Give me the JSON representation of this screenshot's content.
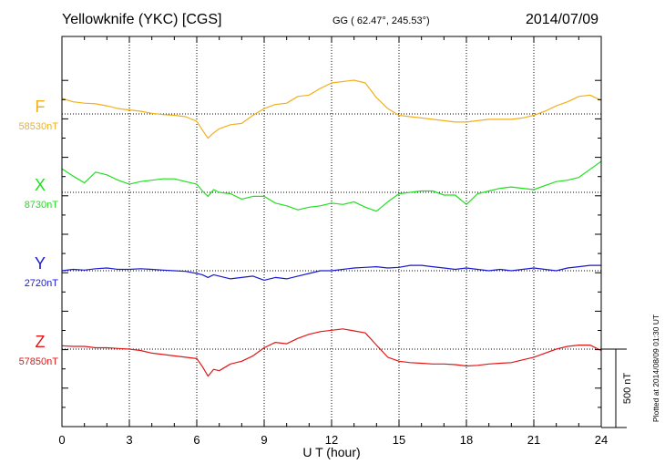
{
  "header": {
    "station": "Yellowknife (YKC)  [CGS]",
    "coords": "GG ( 62.47°, 245.53°)",
    "date": "2014/07/09"
  },
  "plotted_note": "Plotted at 2014/08/09 01:30 UT",
  "scale_label": "500 nT",
  "chart_data": {
    "type": "line",
    "xlabel": "U T (hour)",
    "xlim": [
      0,
      24
    ],
    "x_ticks": [
      "0",
      "3",
      "6",
      "9",
      "12",
      "15",
      "18",
      "21",
      "24"
    ],
    "scale_bar_nT": 500,
    "grid": true,
    "series": [
      {
        "name": "F",
        "baseline_label": "58530nT",
        "baseline_nT": 58530,
        "color": "#f2b01e",
        "x": [
          0,
          0.5,
          1,
          1.5,
          2,
          2.5,
          3,
          3.5,
          4,
          4.5,
          5,
          5.5,
          6,
          6.25,
          6.5,
          6.75,
          7,
          7.5,
          8,
          8.5,
          9,
          9.5,
          10,
          10.5,
          11,
          11.5,
          12,
          12.5,
          13,
          13.5,
          14,
          14.5,
          15,
          15.5,
          16,
          16.5,
          17,
          17.5,
          18,
          18.5,
          19,
          19.5,
          20,
          20.5,
          21,
          21.5,
          22,
          22.5,
          23,
          23.5,
          24
        ],
        "y": [
          58645,
          58620,
          58610,
          58605,
          58590,
          58570,
          58560,
          58550,
          58535,
          58525,
          58520,
          58510,
          58475,
          58410,
          58350,
          58390,
          58420,
          58450,
          58460,
          58520,
          58570,
          58600,
          58610,
          58660,
          58670,
          58720,
          58760,
          58770,
          58780,
          58760,
          58650,
          58570,
          58520,
          58510,
          58500,
          58490,
          58480,
          58470,
          58470,
          58480,
          58490,
          58490,
          58490,
          58500,
          58520,
          58550,
          58590,
          58620,
          58660,
          58670,
          58630
        ]
      },
      {
        "name": "X",
        "baseline_label": "8730nT",
        "baseline_nT": 8730,
        "color": "#1fe01f",
        "x": [
          0,
          0.5,
          1,
          1.5,
          2,
          2.5,
          3,
          3.5,
          4,
          4.5,
          5,
          5.5,
          6,
          6.25,
          6.5,
          6.75,
          7,
          7.5,
          8,
          8.5,
          9,
          9.5,
          10,
          10.5,
          11,
          11.5,
          12,
          12.5,
          13,
          13.5,
          14,
          14.5,
          15,
          15.5,
          16,
          16.5,
          17,
          17.5,
          18,
          18.5,
          19,
          19.5,
          20,
          20.5,
          21,
          21.5,
          22,
          22.5,
          23,
          23.5,
          24
        ],
        "y": [
          8905,
          8850,
          8800,
          8880,
          8860,
          8820,
          8790,
          8810,
          8820,
          8830,
          8830,
          8810,
          8790,
          8740,
          8700,
          8750,
          8730,
          8720,
          8680,
          8700,
          8700,
          8650,
          8630,
          8600,
          8620,
          8630,
          8650,
          8640,
          8660,
          8620,
          8590,
          8660,
          8720,
          8730,
          8740,
          8740,
          8710,
          8710,
          8640,
          8720,
          8740,
          8760,
          8770,
          8760,
          8750,
          8780,
          8810,
          8820,
          8840,
          8900,
          8960
        ]
      },
      {
        "name": "Y",
        "baseline_label": "2720nT",
        "baseline_nT": 2720,
        "color": "#1a1ad0",
        "x": [
          0,
          0.5,
          1,
          1.5,
          2,
          2.5,
          3,
          3.5,
          4,
          4.5,
          5,
          5.5,
          6,
          6.25,
          6.5,
          6.75,
          7,
          7.5,
          8,
          8.5,
          9,
          9.5,
          10,
          10.5,
          11,
          11.5,
          12,
          12.5,
          13,
          13.5,
          14,
          14.5,
          15,
          15.5,
          16,
          16.5,
          17,
          17.5,
          18,
          18.5,
          19,
          19.5,
          20,
          20.5,
          21,
          21.5,
          22,
          22.5,
          23,
          23.5,
          24
        ],
        "y": [
          2720,
          2730,
          2725,
          2735,
          2740,
          2730,
          2730,
          2735,
          2730,
          2725,
          2720,
          2715,
          2700,
          2690,
          2670,
          2690,
          2680,
          2660,
          2670,
          2680,
          2650,
          2670,
          2660,
          2680,
          2700,
          2720,
          2720,
          2730,
          2740,
          2745,
          2750,
          2740,
          2745,
          2760,
          2760,
          2750,
          2740,
          2730,
          2740,
          2730,
          2720,
          2730,
          2720,
          2730,
          2740,
          2730,
          2720,
          2740,
          2750,
          2760,
          2760
        ]
      },
      {
        "name": "Z",
        "baseline_label": "57850nT",
        "baseline_nT": 57850,
        "color": "#e01818",
        "x": [
          0,
          0.5,
          1,
          1.5,
          2,
          2.5,
          3,
          3.5,
          4,
          4.5,
          5,
          5.5,
          6,
          6.25,
          6.5,
          6.75,
          7,
          7.5,
          8,
          8.5,
          9,
          9.5,
          10,
          10.5,
          11,
          11.5,
          12,
          12.5,
          13,
          13.5,
          14,
          14.5,
          15,
          15.5,
          16,
          16.5,
          17,
          17.5,
          18,
          18.5,
          19,
          19.5,
          20,
          20.5,
          21,
          21.5,
          22,
          22.5,
          23,
          23.5,
          24
        ],
        "y": [
          57875,
          57870,
          57870,
          57860,
          57860,
          57855,
          57850,
          57840,
          57820,
          57810,
          57800,
          57790,
          57780,
          57720,
          57650,
          57700,
          57690,
          57740,
          57760,
          57800,
          57860,
          57900,
          57890,
          57930,
          57960,
          57980,
          57990,
          58000,
          57985,
          57970,
          57880,
          57790,
          57760,
          57750,
          57745,
          57740,
          57740,
          57735,
          57725,
          57730,
          57740,
          57745,
          57750,
          57770,
          57790,
          57820,
          57850,
          57870,
          57880,
          57880,
          57840
        ]
      }
    ]
  }
}
